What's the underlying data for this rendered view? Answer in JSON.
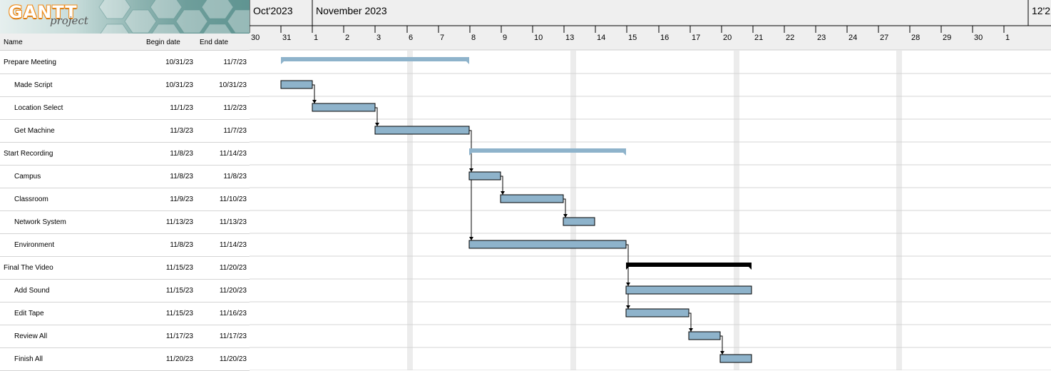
{
  "app": {
    "logo_text": "GANTT",
    "logo_subtext": "project"
  },
  "table": {
    "headers": {
      "name": "Name",
      "begin": "Begin date",
      "end": "End date"
    },
    "rows": [
      {
        "name": "Prepare Meeting",
        "begin": "10/31/23",
        "end": "11/7/23",
        "level": 0
      },
      {
        "name": "Made Script",
        "begin": "10/31/23",
        "end": "10/31/23",
        "level": 1
      },
      {
        "name": "Location Select",
        "begin": "11/1/23",
        "end": "11/2/23",
        "level": 1
      },
      {
        "name": "Get Machine",
        "begin": "11/3/23",
        "end": "11/7/23",
        "level": 1
      },
      {
        "name": "Start Recording",
        "begin": "11/8/23",
        "end": "11/14/23",
        "level": 0
      },
      {
        "name": "Campus",
        "begin": "11/8/23",
        "end": "11/8/23",
        "level": 1
      },
      {
        "name": "Classroom",
        "begin": "11/9/23",
        "end": "11/10/23",
        "level": 1
      },
      {
        "name": "Network System",
        "begin": "11/13/23",
        "end": "11/13/23",
        "level": 1
      },
      {
        "name": "Environment",
        "begin": "11/8/23",
        "end": "11/14/23",
        "level": 1
      },
      {
        "name": "Final The Video",
        "begin": "11/15/23",
        "end": "11/20/23",
        "level": 0
      },
      {
        "name": "Add Sound",
        "begin": "11/15/23",
        "end": "11/20/23",
        "level": 1
      },
      {
        "name": "Edit Tape",
        "begin": "11/15/23",
        "end": "11/16/23",
        "level": 1
      },
      {
        "name": "Review All",
        "begin": "11/17/23",
        "end": "11/17/23",
        "level": 1
      },
      {
        "name": "Finish All",
        "begin": "11/20/23",
        "end": "11/20/23",
        "level": 1
      }
    ]
  },
  "timeline": {
    "months": [
      {
        "label": "Oct'2023"
      },
      {
        "label": "November 2023"
      },
      {
        "label": "12'2"
      }
    ],
    "days": [
      "30",
      "31",
      "1",
      "2",
      "3",
      "6",
      "7",
      "8",
      "9",
      "10",
      "13",
      "14",
      "15",
      "16",
      "17",
      "20",
      "21",
      "22",
      "23",
      "24",
      "27",
      "28",
      "29",
      "30",
      "1"
    ]
  },
  "colors": {
    "task_fill": "#8eb3cb",
    "summary_fill": "#8eb3cb",
    "critical_summary": "#000000",
    "weekend_band": "#ececec",
    "row_line": "#d4d4d4"
  },
  "gantt": {
    "tasks": [
      {
        "row": 0,
        "type": "summary",
        "start": "10/31/23",
        "end": "11/7/23"
      },
      {
        "row": 1,
        "type": "task",
        "start": "10/31/23",
        "end": "10/31/23"
      },
      {
        "row": 2,
        "type": "task",
        "start": "11/1/23",
        "end": "11/2/23"
      },
      {
        "row": 3,
        "type": "task",
        "start": "11/3/23",
        "end": "11/7/23"
      },
      {
        "row": 4,
        "type": "summary",
        "start": "11/8/23",
        "end": "11/14/23"
      },
      {
        "row": 5,
        "type": "task",
        "start": "11/8/23",
        "end": "11/8/23"
      },
      {
        "row": 6,
        "type": "task",
        "start": "11/9/23",
        "end": "11/10/23"
      },
      {
        "row": 7,
        "type": "task",
        "start": "11/13/23",
        "end": "11/13/23"
      },
      {
        "row": 8,
        "type": "task",
        "start": "11/8/23",
        "end": "11/14/23"
      },
      {
        "row": 9,
        "type": "summary-critical",
        "start": "11/15/23",
        "end": "11/20/23"
      },
      {
        "row": 10,
        "type": "task",
        "start": "11/15/23",
        "end": "11/20/23"
      },
      {
        "row": 11,
        "type": "task",
        "start": "11/15/23",
        "end": "11/16/23"
      },
      {
        "row": 12,
        "type": "task",
        "start": "11/17/23",
        "end": "11/17/23"
      },
      {
        "row": 13,
        "type": "task",
        "start": "11/20/23",
        "end": "11/20/23"
      }
    ],
    "dependencies": [
      {
        "from": 1,
        "to": 2
      },
      {
        "from": 2,
        "to": 3
      },
      {
        "from": 3,
        "to": 5
      },
      {
        "from": 3,
        "to": 8
      },
      {
        "from": 5,
        "to": 6
      },
      {
        "from": 6,
        "to": 7
      },
      {
        "from": 8,
        "to": 10
      },
      {
        "from": 8,
        "to": 11
      },
      {
        "from": 11,
        "to": 12
      },
      {
        "from": 12,
        "to": 13
      }
    ]
  }
}
